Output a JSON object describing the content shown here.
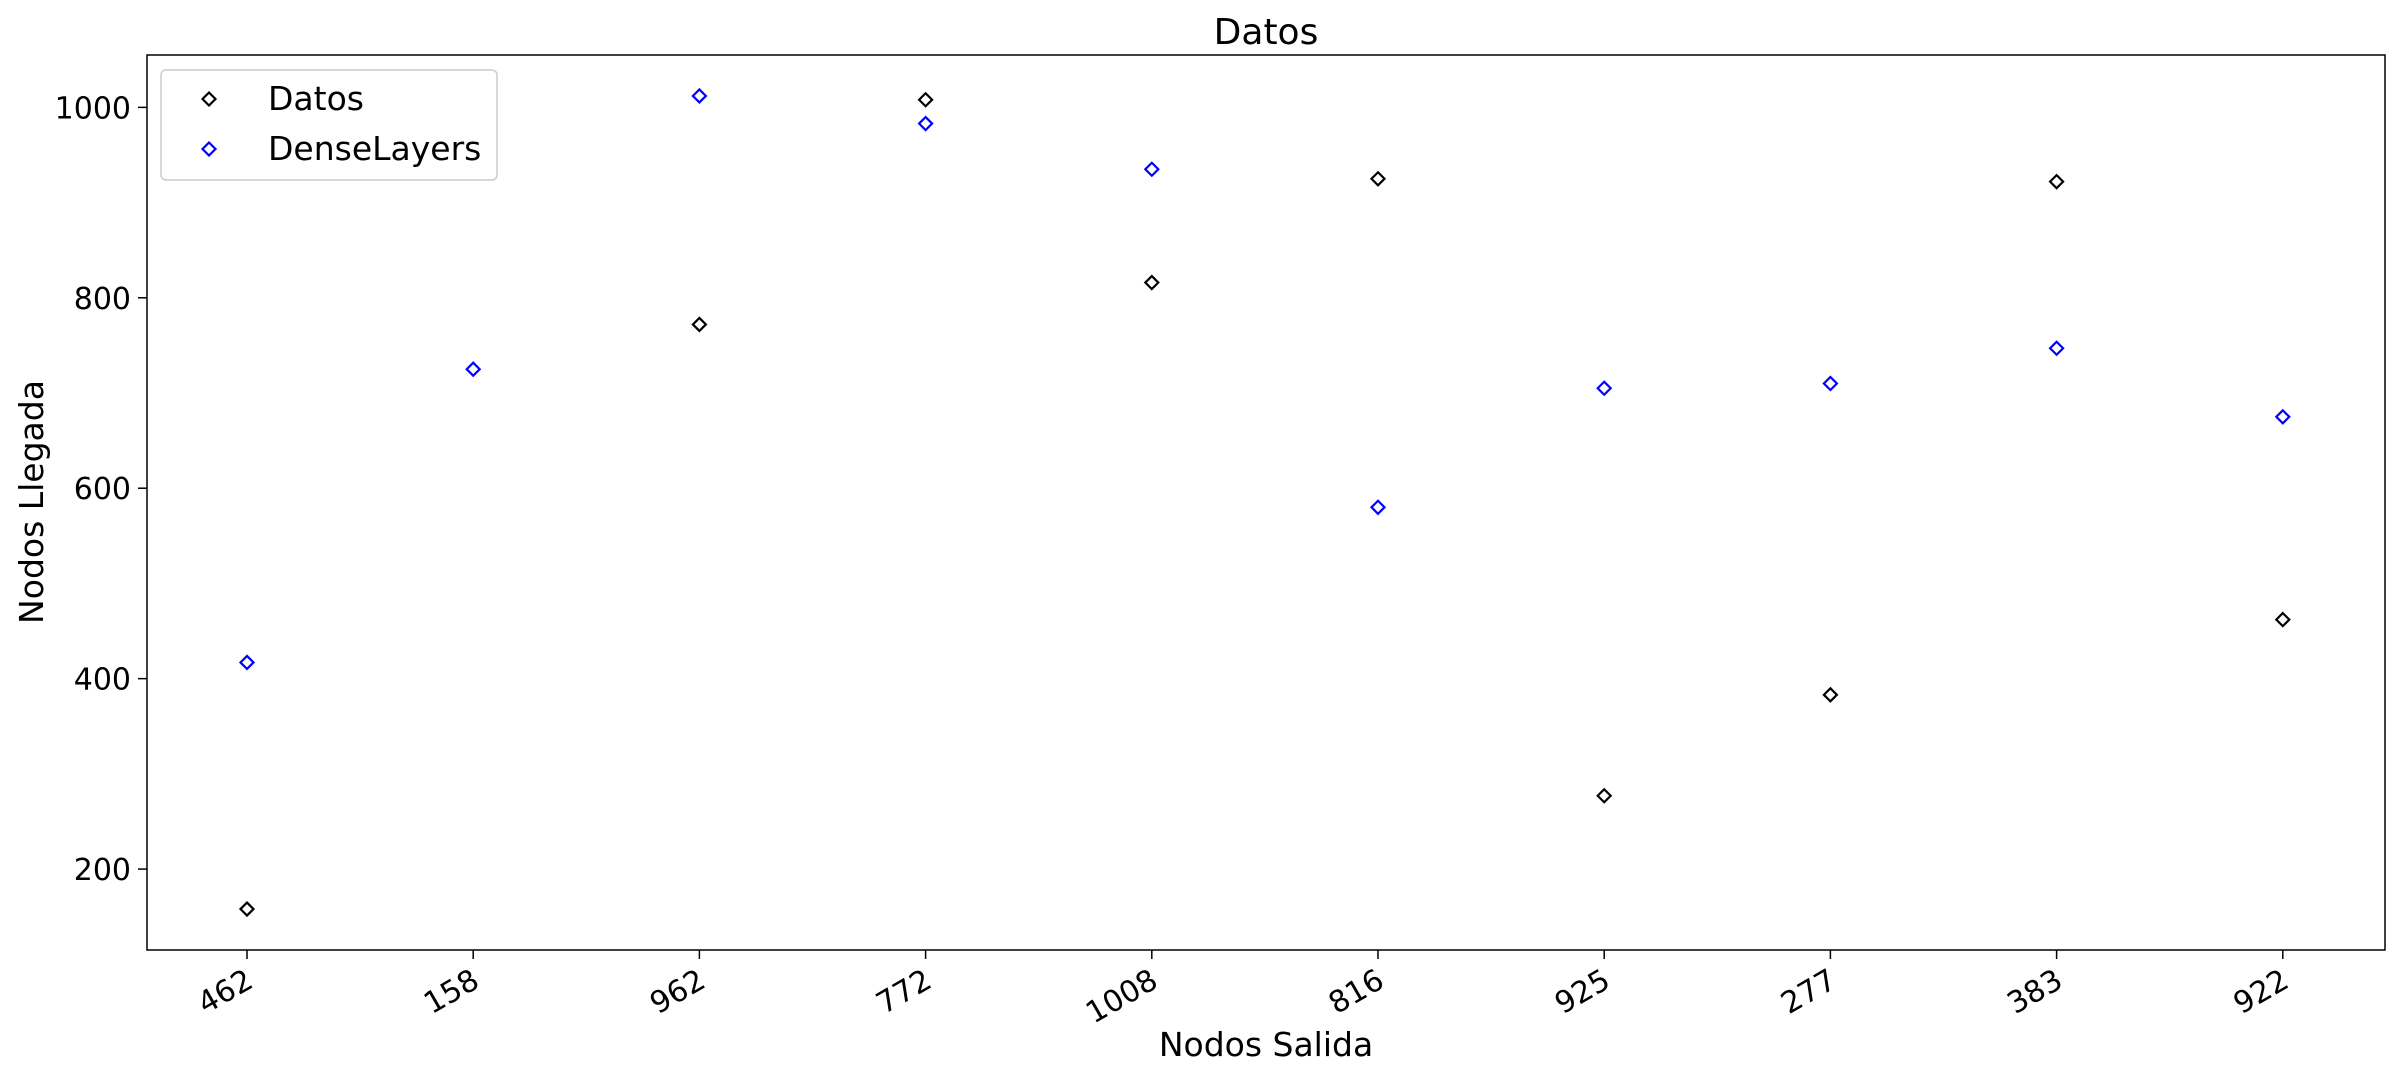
{
  "chart_data": {
    "type": "scatter",
    "title": "Datos",
    "xlabel": "Nodos Salida",
    "ylabel": "Nodos Llegada",
    "categories": [
      "462",
      "158",
      "962",
      "772",
      "1008",
      "816",
      "925",
      "277",
      "383",
      "922"
    ],
    "ylim": [
      115,
      1055
    ],
    "yticks": [
      200,
      400,
      600,
      800,
      1000
    ],
    "grid": false,
    "legend_position": "top-left",
    "marker": "diamond",
    "series": [
      {
        "name": "Datos",
        "color": "#000000",
        "values": [
          158,
          null,
          772,
          1008,
          816,
          925,
          277,
          383,
          922,
          462
        ]
      },
      {
        "name": "DenseLayers",
        "color": "#0000ff",
        "values": [
          417,
          725,
          1012,
          983,
          935,
          580,
          705,
          710,
          747,
          675
        ]
      }
    ]
  }
}
